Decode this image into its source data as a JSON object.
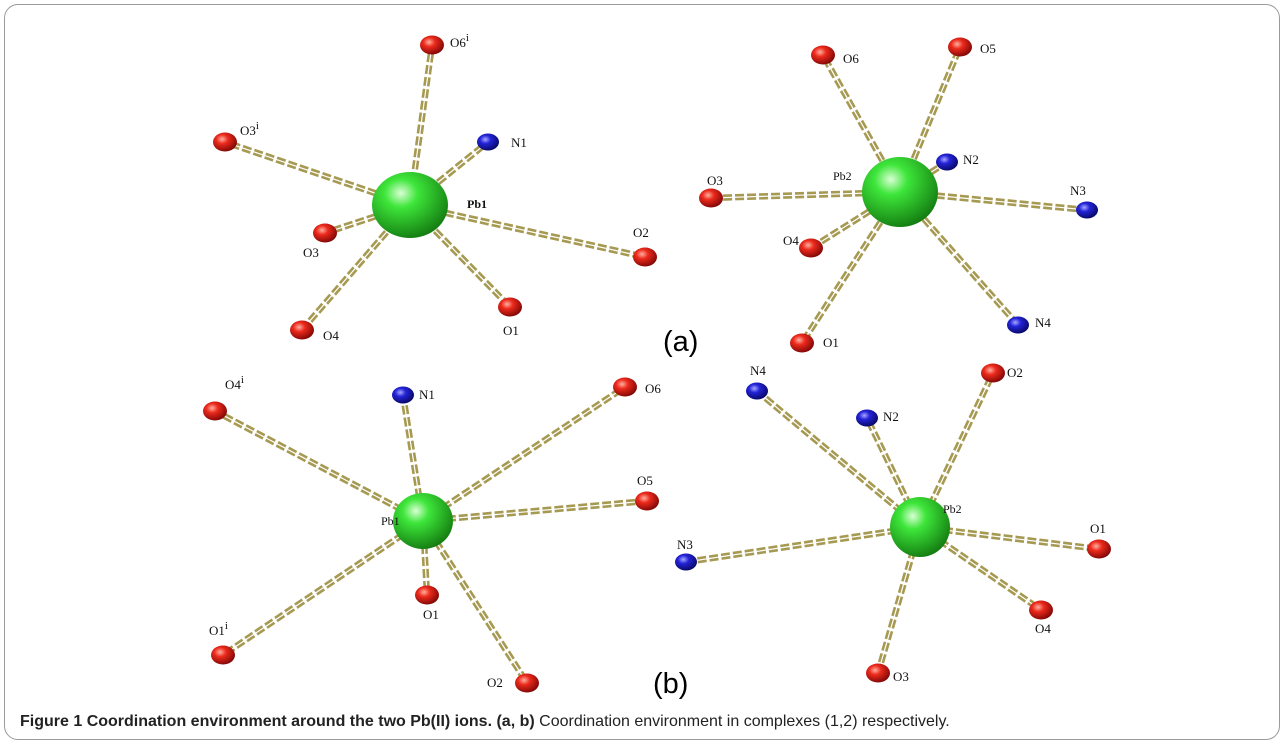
{
  "caption": {
    "figure_label": "Figure 1",
    "title": "Coordination environment around the two Pb(II) ions.",
    "panel_refs": "(a, b)",
    "text": "Coordination environment in complexes (1,2) respectively."
  },
  "colors": {
    "oxygen": "#e01414",
    "nitrogen": "#1a1ad6",
    "lead": "#2fd62f",
    "bond": "#a69a52"
  },
  "panels": [
    {
      "label": "(a)",
      "centers": [
        {
          "label": "Pb1",
          "ligands": [
            {
              "label": "O6",
              "sup": "i",
              "el": "O"
            },
            {
              "label": "O3",
              "sup": "i",
              "el": "O"
            },
            {
              "label": "N1",
              "sup": "",
              "el": "N"
            },
            {
              "label": "O3",
              "sup": "",
              "el": "O"
            },
            {
              "label": "O2",
              "sup": "",
              "el": "O"
            },
            {
              "label": "O4",
              "sup": "",
              "el": "O"
            },
            {
              "label": "O1",
              "sup": "",
              "el": "O"
            }
          ]
        },
        {
          "label": "Pb2",
          "ligands": [
            {
              "label": "O6",
              "sup": "",
              "el": "O"
            },
            {
              "label": "O5",
              "sup": "",
              "el": "O"
            },
            {
              "label": "O3",
              "sup": "",
              "el": "O"
            },
            {
              "label": "N2",
              "sup": "",
              "el": "N"
            },
            {
              "label": "N3",
              "sup": "",
              "el": "N"
            },
            {
              "label": "O4",
              "sup": "",
              "el": "O"
            },
            {
              "label": "O1",
              "sup": "",
              "el": "O"
            },
            {
              "label": "N4",
              "sup": "",
              "el": "N"
            }
          ]
        }
      ]
    },
    {
      "label": "(b)",
      "centers": [
        {
          "label": "Pb1",
          "ligands": [
            {
              "label": "O4",
              "sup": "i",
              "el": "O"
            },
            {
              "label": "N1",
              "sup": "",
              "el": "N"
            },
            {
              "label": "O6",
              "sup": "",
              "el": "O"
            },
            {
              "label": "O5",
              "sup": "",
              "el": "O"
            },
            {
              "label": "O1",
              "sup": "i",
              "el": "O"
            },
            {
              "label": "O1",
              "sup": "",
              "el": "O"
            },
            {
              "label": "O2",
              "sup": "",
              "el": "O"
            }
          ]
        },
        {
          "label": "Pb2",
          "ligands": [
            {
              "label": "N4",
              "sup": "",
              "el": "N"
            },
            {
              "label": "O2",
              "sup": "",
              "el": "O"
            },
            {
              "label": "N2",
              "sup": "",
              "el": "N"
            },
            {
              "label": "N3",
              "sup": "",
              "el": "N"
            },
            {
              "label": "O1",
              "sup": "",
              "el": "O"
            },
            {
              "label": "O4",
              "sup": "",
              "el": "O"
            },
            {
              "label": "O3",
              "sup": "",
              "el": "O"
            }
          ]
        }
      ]
    }
  ]
}
